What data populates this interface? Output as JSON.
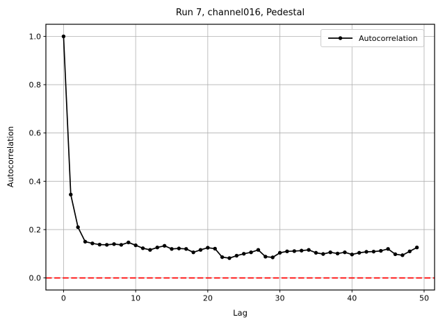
{
  "chart_data": {
    "type": "line",
    "title": "Run 7, channel016, Pedestal",
    "xlabel": "Lag",
    "ylabel": "Autocorrelation",
    "legend": [
      "Autocorrelation"
    ],
    "legend_position": "upper right",
    "grid": true,
    "x": [
      0,
      1,
      2,
      3,
      4,
      5,
      6,
      7,
      8,
      9,
      10,
      11,
      12,
      13,
      14,
      15,
      16,
      17,
      18,
      19,
      20,
      21,
      22,
      23,
      24,
      25,
      26,
      27,
      28,
      29,
      30,
      31,
      32,
      33,
      34,
      35,
      36,
      37,
      38,
      39,
      40,
      41,
      42,
      43,
      44,
      45,
      46,
      47,
      48,
      49
    ],
    "y": [
      1.0,
      0.345,
      0.21,
      0.15,
      0.143,
      0.138,
      0.137,
      0.14,
      0.137,
      0.147,
      0.135,
      0.123,
      0.116,
      0.126,
      0.133,
      0.12,
      0.122,
      0.12,
      0.106,
      0.116,
      0.125,
      0.121,
      0.086,
      0.082,
      0.092,
      0.1,
      0.106,
      0.116,
      0.088,
      0.085,
      0.104,
      0.11,
      0.111,
      0.113,
      0.116,
      0.104,
      0.099,
      0.106,
      0.101,
      0.106,
      0.097,
      0.104,
      0.108,
      0.109,
      0.112,
      0.12,
      0.098,
      0.094,
      0.11,
      0.126
    ],
    "xticks": [
      0,
      10,
      20,
      30,
      40,
      50
    ],
    "yticks": [
      0.0,
      0.2,
      0.4,
      0.6,
      0.8,
      1.0
    ],
    "ytick_labels": [
      "0.0",
      "0.2",
      "0.4",
      "0.6",
      "0.8",
      "1.0"
    ],
    "xlim": [
      -2.45,
      51.45
    ],
    "ylim": [
      -0.05,
      1.05
    ],
    "line_color": "#000000",
    "marker": "circle-dot",
    "grid_color": "#b0b0b0",
    "zero_line": {
      "y": 0.0,
      "color": "#ff0000",
      "style": "dashed"
    }
  }
}
